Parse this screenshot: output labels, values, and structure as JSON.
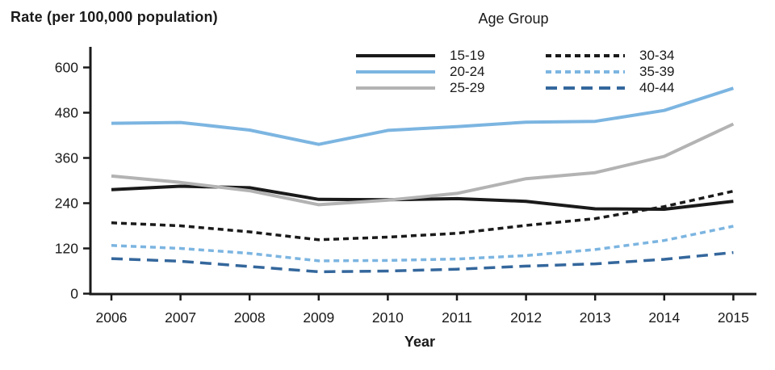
{
  "chart_data": {
    "type": "line",
    "ylabel": "Rate (per 100,000 population)",
    "xlabel": "Year",
    "legend_title": "Age Group",
    "legend_position": "top-center",
    "grid": false,
    "x": [
      2006,
      2007,
      2008,
      2009,
      2010,
      2011,
      2012,
      2013,
      2014,
      2015
    ],
    "y_ticks": [
      0,
      120,
      240,
      360,
      480,
      600
    ],
    "ylim": [
      0,
      620
    ],
    "series": [
      {
        "name": "15-19",
        "color": "#1a1a1a",
        "dash": "solid",
        "values": [
          276,
          285,
          281,
          250,
          249,
          252,
          245,
          225,
          224,
          245
        ]
      },
      {
        "name": "20-24",
        "color": "#7cb5e1",
        "dash": "solid",
        "values": [
          452,
          454,
          434,
          396,
          433,
          443,
          455,
          457,
          486,
          545
        ]
      },
      {
        "name": "25-29",
        "color": "#b3b3b3",
        "dash": "solid",
        "values": [
          312,
          295,
          273,
          236,
          248,
          266,
          305,
          321,
          364,
          450
        ]
      },
      {
        "name": "30-34",
        "color": "#1a1a1a",
        "dash": "dotted",
        "values": [
          188,
          180,
          164,
          143,
          150,
          160,
          181,
          199,
          231,
          272
        ]
      },
      {
        "name": "35-39",
        "color": "#7cb5e1",
        "dash": "dotted",
        "values": [
          128,
          120,
          107,
          87,
          88,
          92,
          101,
          117,
          141,
          179
        ]
      },
      {
        "name": "40-44",
        "color": "#34679c",
        "dash": "dashed",
        "values": [
          93,
          86,
          72,
          58,
          60,
          65,
          73,
          79,
          91,
          109
        ]
      }
    ]
  }
}
